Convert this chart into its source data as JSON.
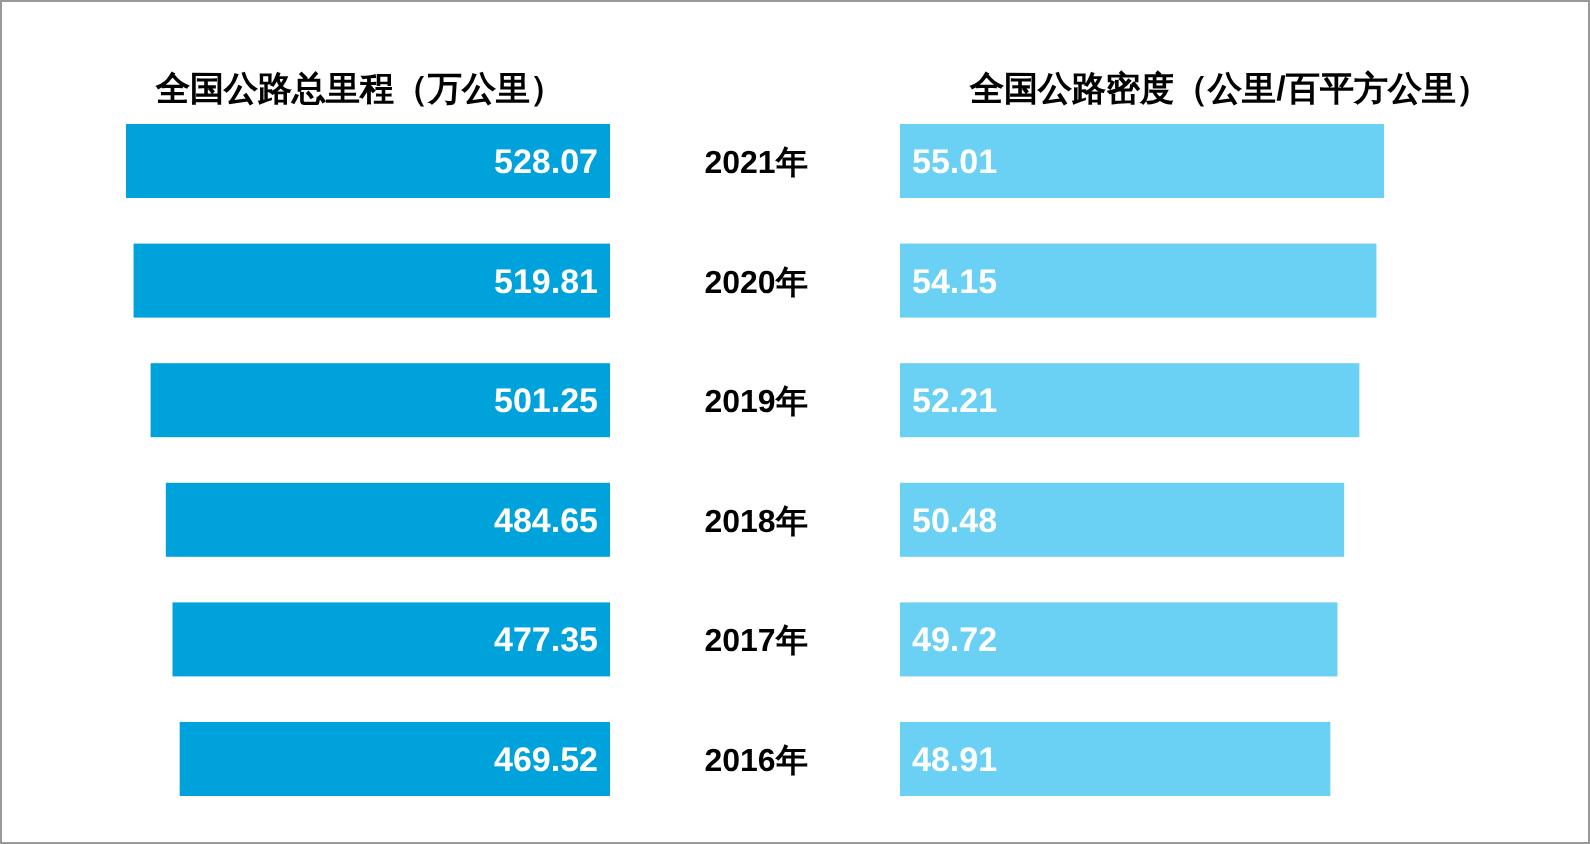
{
  "chart_data": [
    {
      "type": "bar",
      "orientation": "horizontal",
      "title": "全国公路总里程（万公里）",
      "categories": [
        "2021年",
        "2020年",
        "2019年",
        "2018年",
        "2017年",
        "2016年"
      ],
      "values": [
        528.07,
        519.81,
        501.25,
        484.65,
        477.35,
        469.52
      ],
      "color": "#00a2dc",
      "data_labels": true,
      "tick_labels": "y"
    },
    {
      "type": "bar",
      "orientation": "horizontal",
      "title": "全国公路密度（公里/百平方公里）",
      "categories": [
        null,
        null,
        null,
        null,
        null,
        null
      ],
      "values": [
        55.01,
        54.15,
        52.21,
        50.48,
        49.72,
        48.91
      ],
      "color": "#6ad0f4",
      "data_labels": true
    }
  ]
}
